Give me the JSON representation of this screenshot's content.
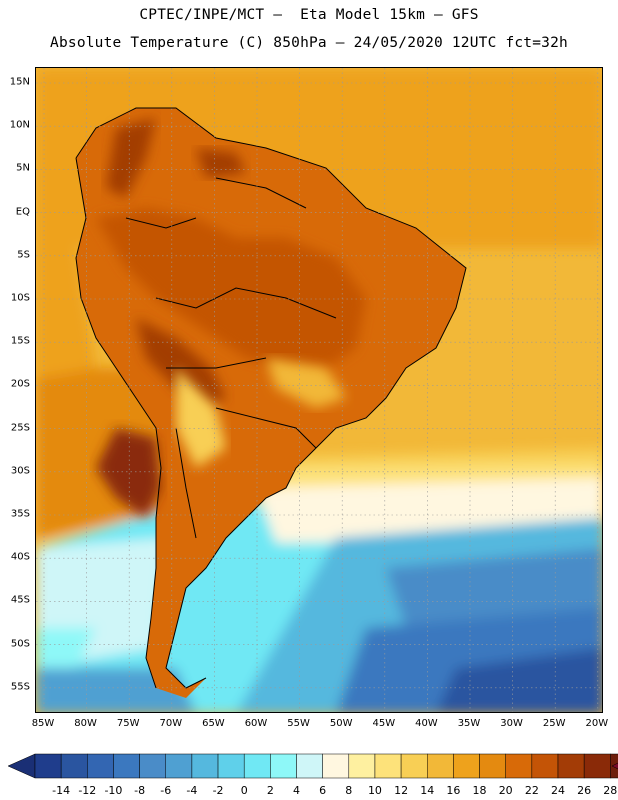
{
  "header": {
    "line1": "CPTEC/INPE/MCT –  Eta Model 15km – GFS",
    "line2": "Absolute Temperature (C) 850hPa – 24/05/2020 12UTC fct=32h"
  },
  "map": {
    "latitudes": [
      "15N",
      "10N",
      "5N",
      "EQ",
      "5S",
      "10S",
      "15S",
      "20S",
      "25S",
      "30S",
      "35S",
      "40S",
      "45S",
      "50S",
      "55S"
    ],
    "longitudes": [
      "85W",
      "80W",
      "75W",
      "70W",
      "65W",
      "60W",
      "55W",
      "50W",
      "45W",
      "40W",
      "35W",
      "30W",
      "25W",
      "20W"
    ]
  },
  "colorbar": {
    "labels": [
      "-14",
      "-12",
      "-10",
      "-8",
      "-6",
      "-4",
      "-2",
      "0",
      "2",
      "4",
      "6",
      "8",
      "10",
      "12",
      "14",
      "16",
      "18",
      "20",
      "22",
      "24",
      "26",
      "28"
    ],
    "colors": [
      "#1f3d8c",
      "#2a55a0",
      "#3366b2",
      "#3b78bf",
      "#4a8cc8",
      "#4fa0d2",
      "#55b8de",
      "#5fd0ea",
      "#70e8f4",
      "#8ef8f8",
      "#cff6f8",
      "#fff7e0",
      "#fef0a0",
      "#fde27a",
      "#f8cf55",
      "#f2b838",
      "#eea21c",
      "#e48a10",
      "#d86a08",
      "#c45406",
      "#a33c06",
      "#8a2a08",
      "#6e1e0c"
    ],
    "low_arrow_color": "#1a2f75",
    "high_arrow_color": "#7a0a2a"
  }
}
